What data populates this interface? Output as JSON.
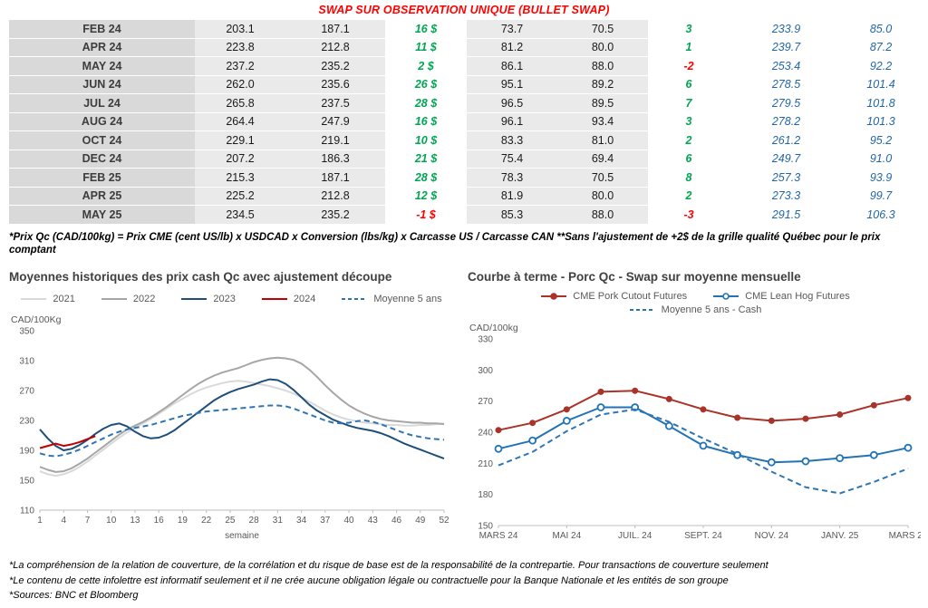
{
  "page_title": "SWAP SUR OBSERVATION UNIQUE (BULLET SWAP)",
  "colors": {
    "title_red": "#ff0000",
    "positive_green": "#00a651",
    "negative_red": "#ff0000",
    "forward_blue": "#2166ac"
  },
  "swap_table": {
    "rows": [
      [
        "FEB 24",
        "203.1",
        "187.1",
        "16 $",
        "73.7",
        "70.5",
        "3",
        "233.9",
        "85.0"
      ],
      [
        "APR 24",
        "223.8",
        "212.8",
        "11 $",
        "81.2",
        "80.0",
        "1",
        "239.7",
        "87.2"
      ],
      [
        "MAY 24",
        "237.2",
        "235.2",
        "2 $",
        "86.1",
        "88.0",
        "-2",
        "253.4",
        "92.2"
      ],
      [
        "JUN 24",
        "262.0",
        "235.6",
        "26 $",
        "95.1",
        "89.2",
        "6",
        "278.5",
        "101.4"
      ],
      [
        "JUL 24",
        "265.8",
        "237.5",
        "28 $",
        "96.5",
        "89.5",
        "7",
        "279.5",
        "101.8"
      ],
      [
        "AUG 24",
        "264.4",
        "247.9",
        "16 $",
        "96.1",
        "93.4",
        "3",
        "278.2",
        "101.3"
      ],
      [
        "OCT 24",
        "229.1",
        "219.1",
        "10 $",
        "83.3",
        "81.0",
        "2",
        "261.2",
        "95.2"
      ],
      [
        "DEC 24",
        "207.2",
        "186.3",
        "21 $",
        "75.4",
        "69.4",
        "6",
        "249.7",
        "91.0"
      ],
      [
        "FEB 25",
        "215.3",
        "187.1",
        "28 $",
        "78.3",
        "70.5",
        "8",
        "257.3",
        "93.9"
      ],
      [
        "APR 25",
        "225.2",
        "212.8",
        "12 $",
        "81.9",
        "80.0",
        "2",
        "273.3",
        "99.7"
      ],
      [
        "MAY 25",
        "234.5",
        "235.2",
        "-1 $",
        "85.3",
        "88.0",
        "-3",
        "291.5",
        "106.3"
      ]
    ]
  },
  "table_note": "*Prix Qc (CAD/100kg) = Prix CME (cent US/lb) x USDCAD x Conversion (lbs/kg) x Carcasse US / Carcasse CAN **Sans l'ajustement de +2$ de la grille qualité Québec pour le prix comptant",
  "chart_data": [
    {
      "type": "line",
      "title": "Moyennes historiques des prix cash Qc avec ajustement découpe",
      "ylabel": "CAD/100Kg",
      "xlabel": "semaine",
      "x_range": [
        1,
        52
      ],
      "xticks": [
        1,
        4,
        7,
        10,
        13,
        16,
        19,
        22,
        25,
        28,
        31,
        34,
        37,
        40,
        43,
        46,
        49,
        52
      ],
      "ylim": [
        110,
        350
      ],
      "ytick_step": 40,
      "grid": false,
      "legend_position": "top",
      "series": [
        {
          "name": "2021",
          "color": "#d9d9d9",
          "values": [
            162,
            158,
            156,
            158,
            162,
            168,
            175,
            183,
            191,
            199,
            207,
            214,
            220,
            226,
            232,
            239,
            246,
            253,
            259,
            265,
            270,
            274,
            277,
            280,
            282,
            283,
            282,
            280,
            278,
            276,
            273,
            270,
            266,
            261,
            255,
            249,
            243,
            238,
            234,
            231,
            229,
            227,
            226,
            225,
            224,
            224,
            223,
            223,
            224,
            224,
            225,
            226
          ]
        },
        {
          "name": "2022",
          "color": "#a6a6a6",
          "values": [
            168,
            164,
            161,
            162,
            166,
            172,
            179,
            187,
            195,
            203,
            211,
            218,
            223,
            228,
            234,
            241,
            248,
            256,
            264,
            272,
            279,
            285,
            290,
            294,
            297,
            300,
            304,
            308,
            311,
            313,
            314,
            313,
            311,
            306,
            298,
            288,
            277,
            267,
            258,
            250,
            244,
            239,
            235,
            232,
            230,
            229,
            228,
            227,
            227,
            226,
            226,
            225
          ]
        },
        {
          "name": "2023",
          "color": "#1f4e79",
          "values": [
            218,
            206,
            196,
            190,
            192,
            197,
            204,
            212,
            219,
            224,
            226,
            222,
            215,
            209,
            206,
            207,
            211,
            217,
            225,
            233,
            241,
            249,
            257,
            263,
            268,
            272,
            275,
            278,
            282,
            285,
            284,
            279,
            271,
            261,
            251,
            243,
            237,
            231,
            227,
            223,
            220,
            218,
            216,
            213,
            209,
            204,
            199,
            195,
            191,
            187,
            183,
            179
          ]
        },
        {
          "name": "2024",
          "color": "#c00000",
          "values": [
            193,
            196,
            199,
            196,
            198,
            201,
            205,
            209
          ]
        },
        {
          "name": "Moyenne 5 ans",
          "color": "#2e75b6",
          "dash": true,
          "values": [
            186,
            183,
            182,
            184,
            187,
            191,
            196,
            201,
            206,
            211,
            215,
            218,
            220,
            222,
            224,
            227,
            230,
            233,
            236,
            238,
            240,
            242,
            243,
            244,
            245,
            246,
            247,
            248,
            249,
            250,
            250,
            249,
            246,
            242,
            238,
            234,
            230,
            227,
            226,
            227,
            229,
            230,
            228,
            225,
            221,
            217,
            213,
            210,
            208,
            206,
            205,
            204
          ]
        }
      ]
    },
    {
      "type": "line",
      "title": "Courbe à terme - Porc Qc - Swap sur moyenne mensuelle",
      "ylabel": "CAD/100kg",
      "categories": [
        "MARS 24",
        "AVR. 24",
        "MAI 24",
        "JUIN 24",
        "JUIL. 24",
        "AOÛT 24",
        "SEPT. 24",
        "OCT. 24",
        "NOV. 24",
        "DÉC. 24",
        "JANV. 25",
        "FÉVR. 25",
        "MARS 25"
      ],
      "xtick_labels": [
        "MARS 24",
        "MAI 24",
        "JUIL. 24",
        "SEPT. 24",
        "NOV. 24",
        "JANV. 25",
        "MARS 25"
      ],
      "xtick_indices": [
        0,
        2,
        4,
        6,
        8,
        10,
        12
      ],
      "ylim": [
        150,
        330
      ],
      "ytick_step": 30,
      "grid": false,
      "legend_position": "top",
      "series": [
        {
          "name": "CME Pork Cutout Futures",
          "color": "#a93329",
          "marker": "dot",
          "values": [
            242,
            249,
            262,
            279,
            280,
            272,
            262,
            254,
            251,
            253,
            257,
            266,
            273
          ]
        },
        {
          "name": "CME Lean Hog Futures",
          "color": "#2273b5",
          "marker": "circle",
          "values": [
            224,
            232,
            251,
            264,
            264,
            246,
            227,
            218,
            211,
            212,
            215,
            218,
            225
          ]
        },
        {
          "name": "Moyenne 5 ans - Cash",
          "color": "#2e75b6",
          "dash": true,
          "values": [
            208,
            221,
            241,
            257,
            262,
            250,
            234,
            219,
            202,
            187,
            181,
            192,
            205
          ]
        }
      ]
    }
  ],
  "footnotes": [
    "*La compréhension de la relation de couverture, de la corrélation et du risque de base est de la responsabilité de la contrepartie. Pour transactions de couverture seulement",
    "*Le contenu de cette infolettre est informatif seulement et il ne crée aucune obligation légale ou contractuelle pour la Banque Nationale et les entités de son groupe",
    "*Sources: BNC et Bloomberg"
  ]
}
